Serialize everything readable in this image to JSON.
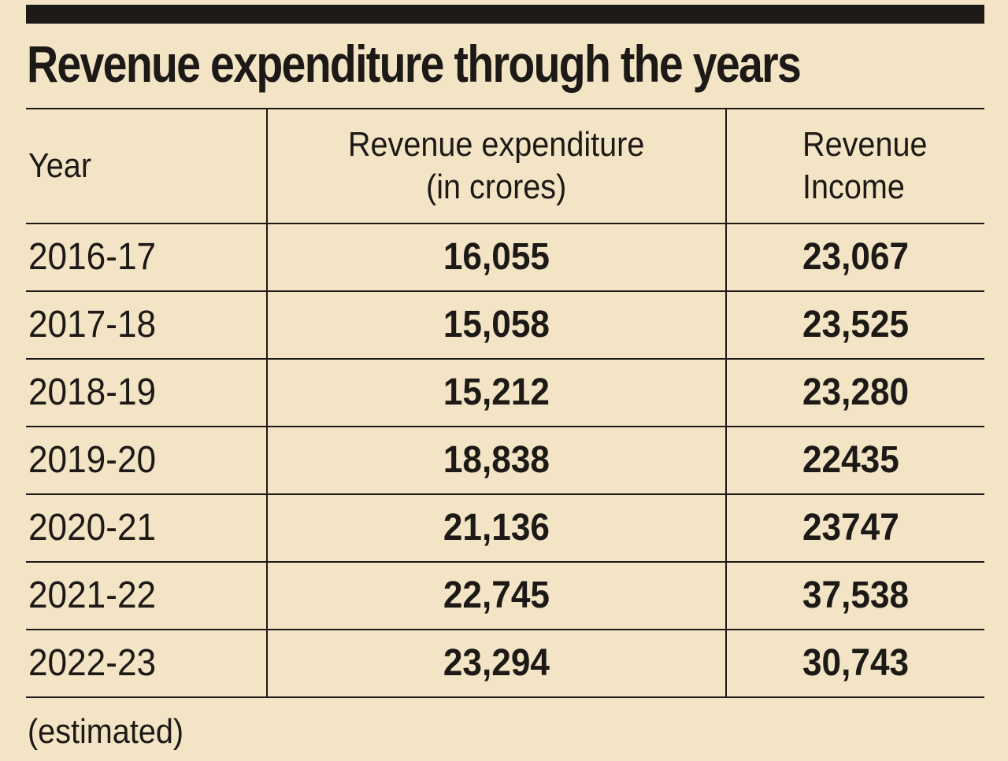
{
  "title": "Revenue expenditure through the years",
  "footnote": "(estimated)",
  "colors": {
    "background": "#f2e4c4",
    "ink": "#1d1916"
  },
  "chart_data": {
    "type": "table",
    "title": "Revenue expenditure through the years",
    "columns": [
      {
        "line1": "Year",
        "line2": ""
      },
      {
        "line1": "Revenue expenditure",
        "line2": "(in crores)"
      },
      {
        "line1": "Revenue",
        "line2": "Income"
      }
    ],
    "rows": [
      {
        "year": "2016-17",
        "expenditure": "16,055",
        "income": "23,067"
      },
      {
        "year": "2017-18",
        "expenditure": "15,058",
        "income": "23,525"
      },
      {
        "year": "2018-19",
        "expenditure": "15,212",
        "income": "23,280"
      },
      {
        "year": "2019-20",
        "expenditure": "18,838",
        "income": "22435"
      },
      {
        "year": "2020-21",
        "expenditure": "21,136",
        "income": "23747"
      },
      {
        "year": "2021-22",
        "expenditure": "22,745",
        "income": "37,538"
      },
      {
        "year": "2022-23",
        "expenditure": "23,294",
        "income": "30,743"
      }
    ],
    "note": "(estimated)"
  }
}
